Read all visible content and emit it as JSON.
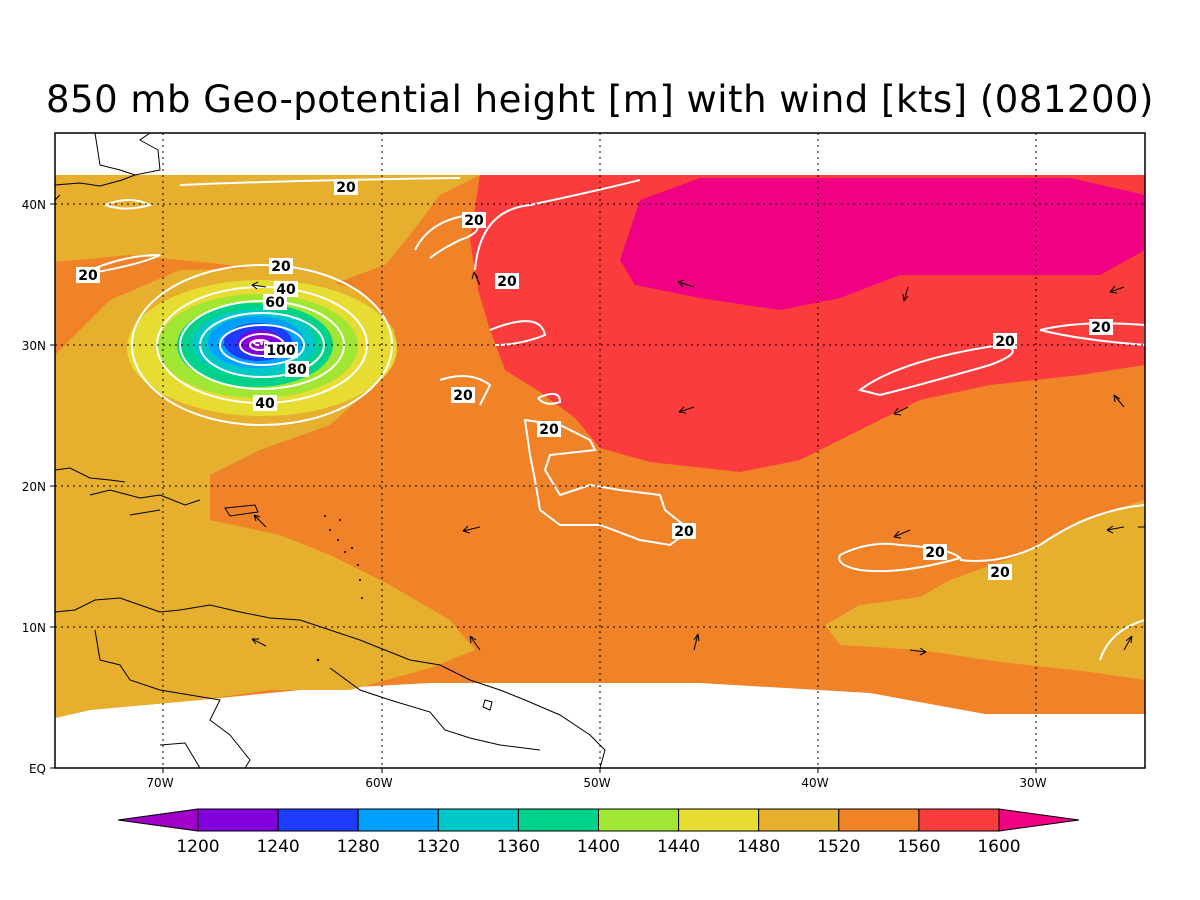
{
  "title": "850 mb Geo-potential height [m] with wind [kts] (081200)",
  "axes": {
    "x_ticks": [
      "70W",
      "60W",
      "50W",
      "40W",
      "30W"
    ],
    "y_ticks": [
      "40N",
      "30N",
      "20N",
      "10N",
      "EQ"
    ]
  },
  "colorbar": {
    "labels": [
      "1200",
      "1240",
      "1280",
      "1320",
      "1360",
      "1400",
      "1440",
      "1480",
      "1520",
      "1560",
      "1600"
    ],
    "colors": [
      "#a000c8",
      "#8200dc",
      "#1e3cff",
      "#00a0ff",
      "#00c8c8",
      "#00d28c",
      "#a0e632",
      "#e6dc32",
      "#e6af2d",
      "#f08228",
      "#fa3c3c",
      "#f00082"
    ]
  },
  "contour_labels": {
    "twenty": "20",
    "forty": "40",
    "sixty": "60",
    "eighty": "80",
    "hundred": "100"
  }
}
